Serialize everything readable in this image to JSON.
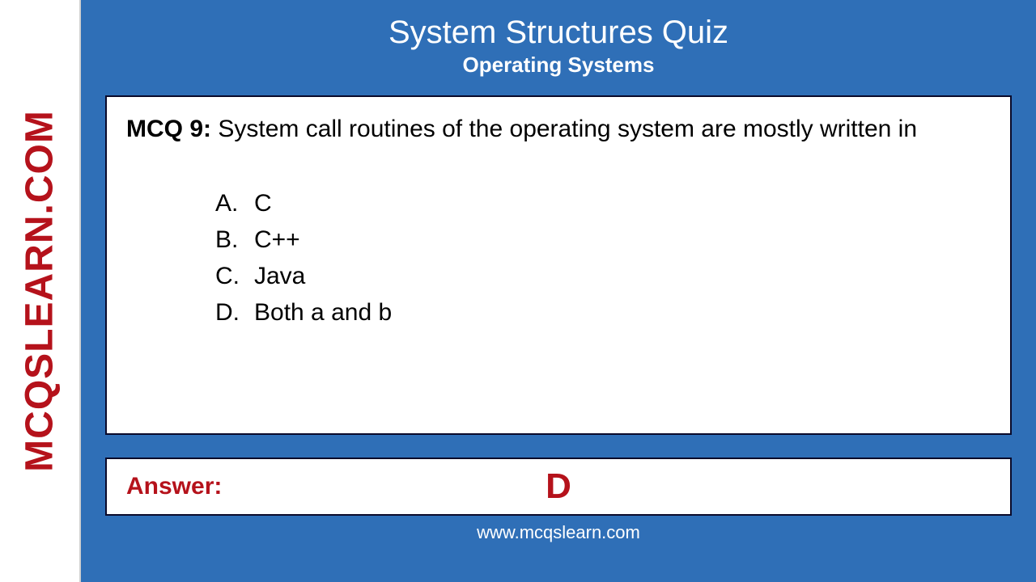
{
  "branding": {
    "sidebar_text": "MCQSLEARN.COM",
    "sidebar_color": "#b5121b",
    "footer_url": "www.mcqslearn.com"
  },
  "colors": {
    "main_bg": "#2f6fb7",
    "card_bg": "#ffffff",
    "card_border": "#0a0a2a",
    "title_color": "#ffffff",
    "text_color": "#000000",
    "accent_red": "#b5121b"
  },
  "header": {
    "title": "System Structures Quiz",
    "subtitle": "Operating Systems",
    "title_fontsize": 40,
    "subtitle_fontsize": 26
  },
  "question": {
    "label": "MCQ 9:",
    "text": "System call routines of the operating system are mostly written in",
    "fontsize": 30,
    "options": [
      {
        "letter": "A.",
        "text": "C"
      },
      {
        "letter": "B.",
        "text": "C++"
      },
      {
        "letter": "C.",
        "text": "Java"
      },
      {
        "letter": "D.",
        "text": "Both a and b"
      }
    ]
  },
  "answer": {
    "label": "Answer:",
    "value": "D",
    "label_fontsize": 30,
    "value_fontsize": 44
  }
}
